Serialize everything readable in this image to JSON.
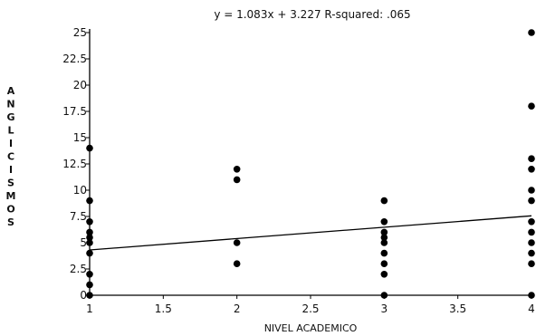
{
  "chart_data": {
    "type": "scatter",
    "title": "y = 1.083x + 3.227    R-squared: .065",
    "xlabel": "NIVEL ACADEMICO",
    "ylabel": "ANGLICISMOS",
    "xlim": [
      1,
      4
    ],
    "ylim": [
      0,
      25
    ],
    "x_ticks": [
      "1",
      "1.5",
      "2",
      "2.5",
      "3",
      "3.5",
      "4"
    ],
    "y_ticks": [
      "0",
      "2.5",
      "5",
      "7.5",
      "10",
      "12.5",
      "15",
      "17.5",
      "20",
      "22.5",
      "25"
    ],
    "grid": false,
    "fit_line": {
      "slope": 1.083,
      "intercept": 3.227
    },
    "points": [
      {
        "x": 1,
        "y": 0
      },
      {
        "x": 1,
        "y": 1
      },
      {
        "x": 1,
        "y": 2
      },
      {
        "x": 1,
        "y": 4
      },
      {
        "x": 1,
        "y": 5
      },
      {
        "x": 1,
        "y": 5.5
      },
      {
        "x": 1,
        "y": 6
      },
      {
        "x": 1,
        "y": 7
      },
      {
        "x": 1,
        "y": 9
      },
      {
        "x": 1,
        "y": 14
      },
      {
        "x": 2,
        "y": 3
      },
      {
        "x": 2,
        "y": 5
      },
      {
        "x": 2,
        "y": 11
      },
      {
        "x": 2,
        "y": 12
      },
      {
        "x": 3,
        "y": 0
      },
      {
        "x": 3,
        "y": 2
      },
      {
        "x": 3,
        "y": 3
      },
      {
        "x": 3,
        "y": 4
      },
      {
        "x": 3,
        "y": 5
      },
      {
        "x": 3,
        "y": 5.5
      },
      {
        "x": 3,
        "y": 6
      },
      {
        "x": 3,
        "y": 7
      },
      {
        "x": 3,
        "y": 9
      },
      {
        "x": 4,
        "y": 0
      },
      {
        "x": 4,
        "y": 3
      },
      {
        "x": 4,
        "y": 4
      },
      {
        "x": 4,
        "y": 5
      },
      {
        "x": 4,
        "y": 6
      },
      {
        "x": 4,
        "y": 7
      },
      {
        "x": 4,
        "y": 9
      },
      {
        "x": 4,
        "y": 10
      },
      {
        "x": 4,
        "y": 12
      },
      {
        "x": 4,
        "y": 13
      },
      {
        "x": 4,
        "y": 18
      },
      {
        "x": 4,
        "y": 25
      }
    ]
  }
}
